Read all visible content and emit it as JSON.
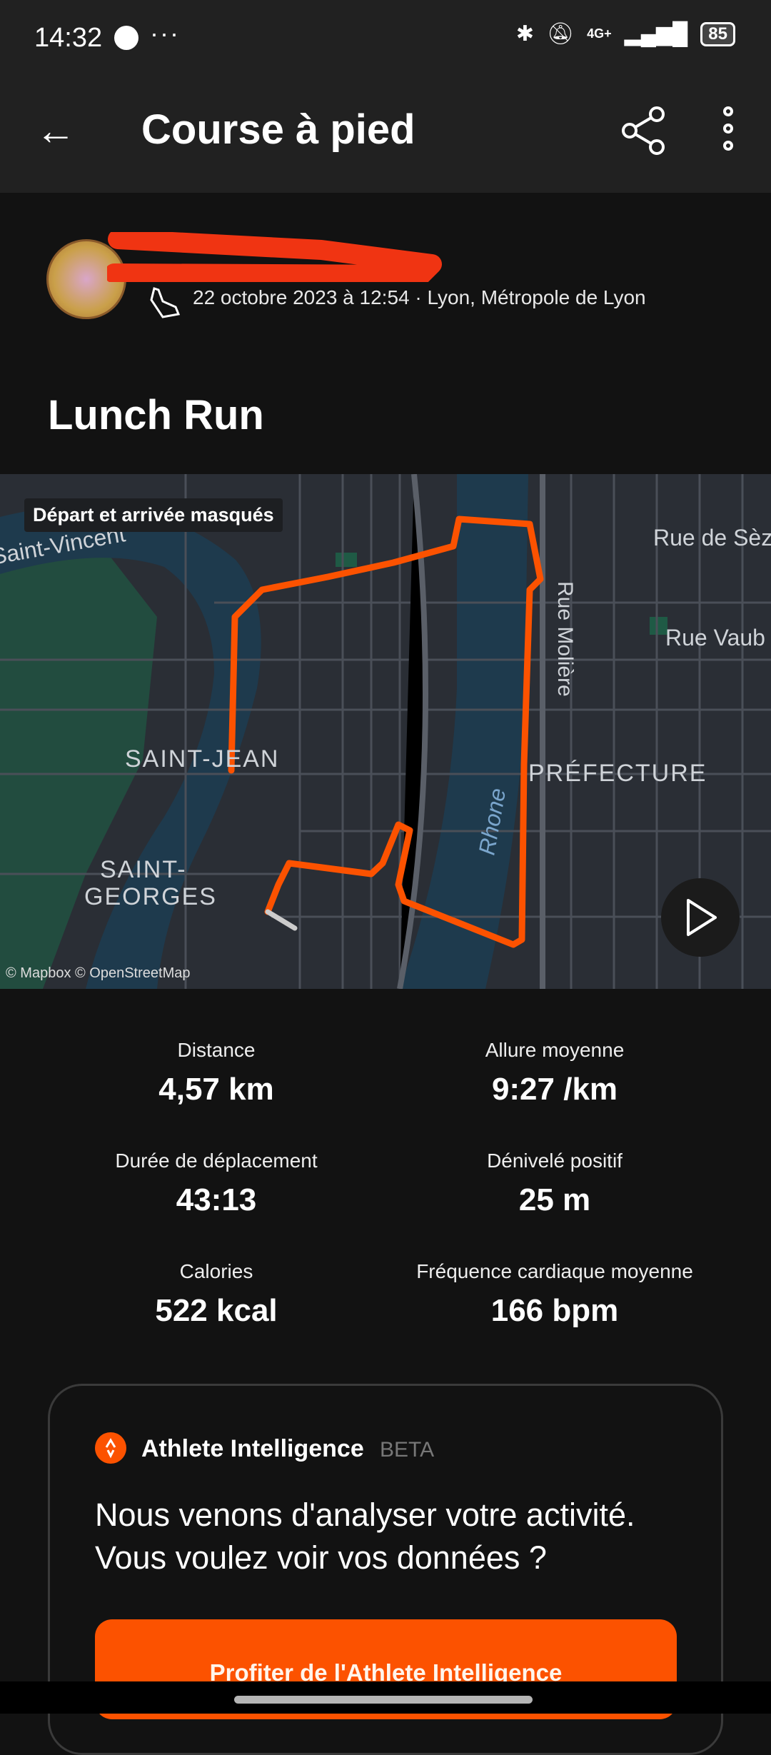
{
  "status_bar": {
    "time": "14:32",
    "dots": "···",
    "network": "4G+",
    "battery": "85"
  },
  "header": {
    "title": "Course à pied"
  },
  "activity": {
    "meta": "22 octobre 2023 à 12:54 · Lyon, Métropole de Lyon",
    "name": "Lunch Run"
  },
  "map": {
    "badge": "Départ et arrivée masqués",
    "labels": {
      "saint_vincent": "Saint-Vincent",
      "saint_jean": "SAINT-JEAN",
      "saint_georges_1": "SAINT-",
      "saint_georges_2": "GEORGES",
      "prefecture": "PRÉFECTURE",
      "rhone": "Rhone",
      "rue_moliere": "Rue Molière",
      "rue_seze": "Rue de Sèze",
      "rue_vaub": "Rue Vaub"
    },
    "attribution": "© Mapbox © OpenStreetMap",
    "route_color": "#fc5200"
  },
  "stats": [
    {
      "label": "Distance",
      "value": "4,57 km"
    },
    {
      "label": "Allure moyenne",
      "value": "9:27 /km"
    },
    {
      "label": "Durée de déplacement",
      "value": "43:13"
    },
    {
      "label": "Dénivelé positif",
      "value": "25 m"
    },
    {
      "label": "Calories",
      "value": "522 kcal"
    },
    {
      "label": "Fréquence cardiaque moyenne",
      "value": "166 bpm"
    }
  ],
  "athlete_intelligence": {
    "title": "Athlete Intelligence",
    "beta": "BETA",
    "message": "Nous venons d'analyser votre activité. Vous voulez voir vos données ?",
    "button": "Profiter de l'Athlete Intelligence"
  },
  "colors": {
    "accent": "#fc5200",
    "header_bg": "#212121",
    "body_bg": "#121212"
  }
}
